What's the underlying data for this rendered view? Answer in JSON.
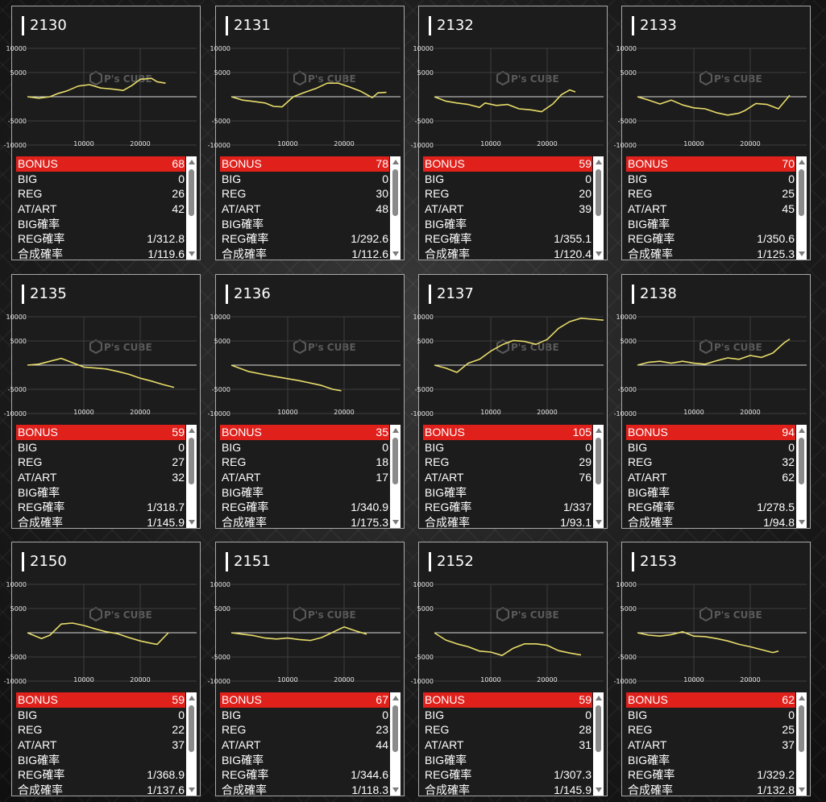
{
  "colors": {
    "bonus_bg": "#e0201b",
    "line": "#e8dc6a",
    "panel": "#1c1c1c"
  },
  "axis": {
    "y_ticks": [
      "10000",
      "5000",
      "-5000",
      "-10000"
    ],
    "x_ticks": [
      "10000",
      "20000"
    ]
  },
  "watermark": {
    "brand": "P's CUBE"
  },
  "labels": {
    "bonus": "BONUS",
    "big": "BIG",
    "reg": "REG",
    "at": "AT/ART",
    "big_rate": "BIG確率",
    "reg_rate": "REG確率",
    "combined_rate": "合成確率"
  },
  "machines": [
    {
      "number": "2130",
      "bonus": "68",
      "big": "0",
      "reg": "26",
      "at": "42",
      "big_rate": "",
      "reg_rate": "1/312.8",
      "combined_rate": "1/119.6",
      "chart_data": {
        "type": "line",
        "xlim": [
          0,
          30000
        ],
        "ylim": [
          -10000,
          10000
        ],
        "x": [
          0,
          2000,
          4000,
          5500,
          7000,
          9000,
          11000,
          13000,
          15000,
          17000,
          18500,
          20000,
          22000,
          23000,
          24500
        ],
        "y": [
          0,
          -300,
          0,
          700,
          1200,
          2200,
          2500,
          1800,
          1600,
          1300,
          2300,
          3600,
          3800,
          3100,
          2800
        ]
      }
    },
    {
      "number": "2131",
      "bonus": "78",
      "big": "0",
      "reg": "30",
      "at": "48",
      "big_rate": "",
      "reg_rate": "1/292.6",
      "combined_rate": "1/112.6",
      "chart_data": {
        "type": "line",
        "xlim": [
          0,
          30000
        ],
        "ylim": [
          -10000,
          10000
        ],
        "x": [
          0,
          2000,
          3500,
          6000,
          7500,
          9000,
          11000,
          13000,
          15000,
          17000,
          19000,
          21000,
          23000,
          25000,
          26000,
          27500
        ],
        "y": [
          0,
          -700,
          -900,
          -1300,
          -2000,
          -2100,
          0,
          900,
          1700,
          2800,
          2800,
          2000,
          1100,
          -200,
          800,
          900
        ]
      }
    },
    {
      "number": "2132",
      "bonus": "59",
      "big": "0",
      "reg": "20",
      "at": "39",
      "big_rate": "",
      "reg_rate": "1/355.1",
      "combined_rate": "1/120.4",
      "chart_data": {
        "type": "line",
        "xlim": [
          0,
          30000
        ],
        "ylim": [
          -10000,
          10000
        ],
        "x": [
          0,
          2000,
          4000,
          6000,
          8000,
          9000,
          11000,
          13000,
          15000,
          17000,
          19000,
          21000,
          22500,
          24000,
          25000
        ],
        "y": [
          0,
          -900,
          -1300,
          -1600,
          -2200,
          -1300,
          -1800,
          -1600,
          -2500,
          -2700,
          -3100,
          -1500,
          400,
          1400,
          1000
        ]
      }
    },
    {
      "number": "2133",
      "bonus": "70",
      "big": "0",
      "reg": "25",
      "at": "45",
      "big_rate": "",
      "reg_rate": "1/350.6",
      "combined_rate": "1/125.3",
      "chart_data": {
        "type": "line",
        "xlim": [
          0,
          30000
        ],
        "ylim": [
          -10000,
          10000
        ],
        "x": [
          0,
          2000,
          4000,
          6000,
          8000,
          10000,
          12000,
          14000,
          16000,
          18000,
          19000,
          21000,
          23000,
          25000,
          27000
        ],
        "y": [
          0,
          -700,
          -1500,
          -700,
          -1700,
          -2300,
          -2500,
          -3300,
          -3800,
          -3400,
          -2900,
          -1400,
          -1600,
          -2500,
          300
        ]
      }
    },
    {
      "number": "2135",
      "bonus": "59",
      "big": "0",
      "reg": "27",
      "at": "32",
      "big_rate": "",
      "reg_rate": "1/318.7",
      "combined_rate": "1/145.9",
      "chart_data": {
        "type": "line",
        "xlim": [
          0,
          30000
        ],
        "ylim": [
          -10000,
          10000
        ],
        "x": [
          0,
          2000,
          4000,
          6000,
          8000,
          10000,
          12000,
          14000,
          16000,
          18000,
          20000,
          22000,
          24000,
          26000
        ],
        "y": [
          0,
          200,
          800,
          1400,
          500,
          -400,
          -600,
          -800,
          -1300,
          -1900,
          -2700,
          -3300,
          -4000,
          -4600
        ]
      }
    },
    {
      "number": "2136",
      "bonus": "35",
      "big": "0",
      "reg": "18",
      "at": "17",
      "big_rate": "",
      "reg_rate": "1/340.9",
      "combined_rate": "1/175.3",
      "chart_data": {
        "type": "line",
        "xlim": [
          0,
          30000
        ],
        "ylim": [
          -10000,
          10000
        ],
        "x": [
          0,
          3000,
          6000,
          8000,
          10000,
          12000,
          14000,
          16000,
          18000,
          19500
        ],
        "y": [
          0,
          -1300,
          -2000,
          -2400,
          -2800,
          -3200,
          -3700,
          -4200,
          -5000,
          -5300
        ]
      }
    },
    {
      "number": "2137",
      "bonus": "105",
      "big": "0",
      "reg": "29",
      "at": "76",
      "big_rate": "",
      "reg_rate": "1/337",
      "combined_rate": "1/93.1",
      "chart_data": {
        "type": "line",
        "xlim": [
          0,
          30000
        ],
        "ylim": [
          -10000,
          10000
        ],
        "x": [
          0,
          2000,
          4000,
          6000,
          8000,
          10000,
          12000,
          14000,
          16000,
          18000,
          20000,
          22000,
          24000,
          26000,
          28000,
          30000
        ],
        "y": [
          0,
          -600,
          -1500,
          400,
          1200,
          2900,
          4200,
          5100,
          4900,
          4300,
          5300,
          7600,
          9000,
          9700,
          9500,
          9300
        ]
      }
    },
    {
      "number": "2138",
      "bonus": "94",
      "big": "0",
      "reg": "32",
      "at": "62",
      "big_rate": "",
      "reg_rate": "1/278.5",
      "combined_rate": "1/94.8",
      "chart_data": {
        "type": "line",
        "xlim": [
          0,
          30000
        ],
        "ylim": [
          -10000,
          10000
        ],
        "x": [
          0,
          2000,
          4000,
          6000,
          8000,
          10000,
          12000,
          14000,
          16000,
          18000,
          20000,
          22000,
          24000,
          26000,
          27000
        ],
        "y": [
          0,
          600,
          800,
          400,
          800,
          400,
          200,
          900,
          1500,
          1200,
          2000,
          1600,
          2500,
          4600,
          5400
        ]
      }
    },
    {
      "number": "2150",
      "bonus": "59",
      "big": "0",
      "reg": "22",
      "at": "37",
      "big_rate": "",
      "reg_rate": "1/368.9",
      "combined_rate": "1/137.6",
      "chart_data": {
        "type": "line",
        "xlim": [
          0,
          30000
        ],
        "ylim": [
          -10000,
          10000
        ],
        "x": [
          0,
          2500,
          4000,
          6000,
          8000,
          10000,
          12000,
          14000,
          16000,
          18000,
          20000,
          22000,
          23000,
          25000
        ],
        "y": [
          0,
          -1200,
          -500,
          1800,
          2000,
          1500,
          800,
          200,
          -200,
          -1000,
          -1700,
          -2200,
          -2400,
          0
        ]
      }
    },
    {
      "number": "2151",
      "bonus": "67",
      "big": "0",
      "reg": "23",
      "at": "44",
      "big_rate": "",
      "reg_rate": "1/344.6",
      "combined_rate": "1/118.3",
      "chart_data": {
        "type": "line",
        "xlim": [
          0,
          30000
        ],
        "ylim": [
          -10000,
          10000
        ],
        "x": [
          0,
          2000,
          4000,
          6000,
          8000,
          10000,
          12000,
          14000,
          16000,
          18000,
          20000,
          22000,
          24000
        ],
        "y": [
          0,
          -300,
          -600,
          -1100,
          -1300,
          -1100,
          -1400,
          -1600,
          -1000,
          100,
          1200,
          400,
          -300
        ]
      }
    },
    {
      "number": "2152",
      "bonus": "59",
      "big": "0",
      "reg": "28",
      "at": "31",
      "big_rate": "",
      "reg_rate": "1/307.3",
      "combined_rate": "1/145.9",
      "chart_data": {
        "type": "line",
        "xlim": [
          0,
          30000
        ],
        "ylim": [
          -10000,
          10000
        ],
        "x": [
          0,
          2000,
          4000,
          6000,
          8000,
          10000,
          12000,
          14000,
          16000,
          18000,
          20000,
          22000,
          24000,
          26000
        ],
        "y": [
          0,
          -1500,
          -2300,
          -2900,
          -3800,
          -4000,
          -4700,
          -3200,
          -2300,
          -2300,
          -2600,
          -3700,
          -4200,
          -4600
        ]
      }
    },
    {
      "number": "2153",
      "bonus": "62",
      "big": "0",
      "reg": "25",
      "at": "37",
      "big_rate": "",
      "reg_rate": "1/329.2",
      "combined_rate": "1/132.8",
      "chart_data": {
        "type": "line",
        "xlim": [
          0,
          30000
        ],
        "ylim": [
          -10000,
          10000
        ],
        "x": [
          0,
          2000,
          4000,
          6000,
          8000,
          10000,
          12000,
          14000,
          16000,
          18000,
          20000,
          22000,
          24000,
          25000
        ],
        "y": [
          0,
          -500,
          -700,
          -400,
          200,
          -700,
          -800,
          -1200,
          -1700,
          -2400,
          -2900,
          -3500,
          -4100,
          -3800
        ]
      }
    }
  ]
}
